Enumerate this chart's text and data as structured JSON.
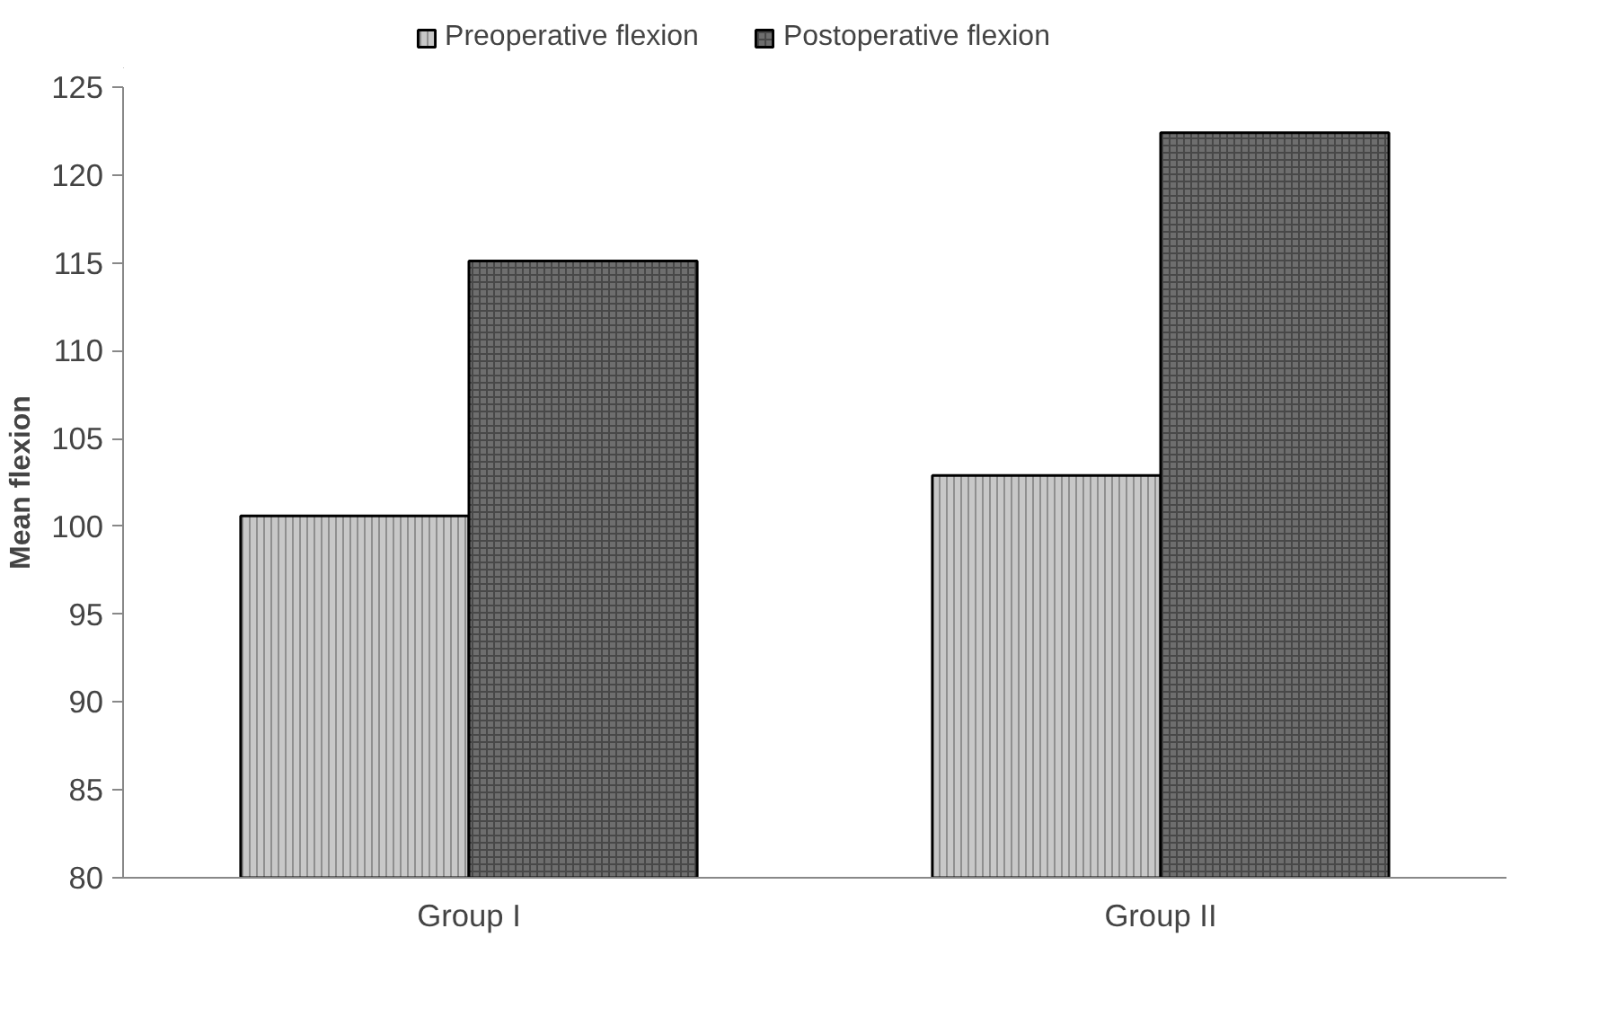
{
  "chart_data": {
    "type": "bar",
    "ylabel": "Mean flexion",
    "categories": [
      "Group I",
      "Group II"
    ],
    "series": [
      {
        "name": "Preoperative flexion",
        "color": "#c8c8c8",
        "values": [
          100.6,
          102.9
        ]
      },
      {
        "name": "Postoperative flexion",
        "color": "#6e6e6e",
        "values": [
          115.1,
          122.4
        ]
      }
    ],
    "ylim": [
      80,
      125
    ],
    "yticks": [
      80,
      85,
      90,
      95,
      100,
      105,
      110,
      115,
      120,
      125
    ],
    "grid": false,
    "legend": "top"
  }
}
